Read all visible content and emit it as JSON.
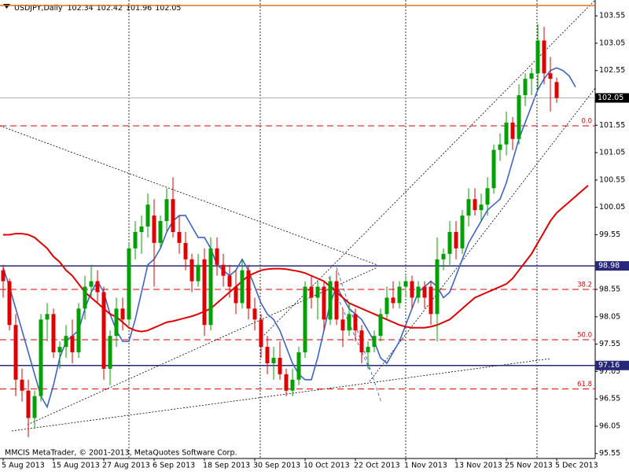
{
  "chart_data": {
    "type": "candlestick",
    "title": "USDJPY,Daily",
    "footer": "MMCIS MetaTrader, © 2001-2013, MetaQuotes Software Corp.",
    "categories": [
      "5 Aug 2013",
      null,
      null,
      null,
      null,
      null,
      null,
      null,
      "15 Aug 2013",
      null,
      null,
      null,
      null,
      null,
      null,
      null,
      "27 Aug 2013",
      null,
      null,
      null,
      null,
      null,
      null,
      null,
      "6 Sep 2013",
      null,
      null,
      null,
      null,
      null,
      null,
      null,
      "18 Sep 2013",
      null,
      null,
      null,
      null,
      null,
      null,
      null,
      "30 Sep 2013",
      null,
      null,
      null,
      null,
      null,
      null,
      null,
      "10 Oct 2013",
      null,
      null,
      null,
      null,
      null,
      null,
      null,
      "22 Oct 2013",
      null,
      null,
      null,
      null,
      null,
      null,
      null,
      "1 Nov 2013",
      null,
      null,
      null,
      null,
      null,
      null,
      null,
      "13 Nov 2013",
      null,
      null,
      null,
      null,
      null,
      null,
      null,
      "25 Nov 2013",
      null,
      null,
      null,
      null,
      null,
      null,
      null,
      "5 Dec 2013",
      null,
      null,
      null,
      null,
      null
    ],
    "open": [
      98.9,
      98.7,
      97.9,
      96.9,
      96.7,
      96.2,
      96.6,
      98.0,
      98.1,
      97.4,
      97.5,
      97.7,
      97.4,
      98.2,
      98.6,
      98.7,
      98.5,
      97.1,
      97.7,
      98.2,
      98.0,
      99.3,
      99.6,
      99.7,
      99.9,
      99.4,
      99.8,
      100.2,
      99.6,
      99.4,
      99.1,
      98.7,
      99.1,
      97.9,
      99.3,
      99.0,
      98.8,
      98.6,
      98.3,
      98.9,
      98.2,
      98.0,
      97.5,
      97.2,
      97.3,
      97.0,
      96.7,
      96.9,
      97.4,
      98.6,
      98.4,
      98.6,
      98.0,
      98.7,
      98.0,
      97.8,
      98.1,
      97.8,
      97.4,
      97.5,
      97.7,
      98.1,
      98.4,
      98.3,
      98.6,
      98.7,
      98.4,
      98.6,
      98.6,
      98.1,
      99.1,
      99.2,
      99.6,
      99.3,
      99.9,
      100.2,
      100.0,
      100.1,
      100.4,
      101.1,
      101.2,
      101.6,
      101.3,
      102.1,
      102.4,
      102.5,
      103.1,
      102.5,
      102.34,
      null,
      null,
      null,
      null,
      null
    ],
    "high": [
      99.0,
      98.75,
      98.1,
      97.1,
      96.9,
      96.7,
      98.1,
      98.3,
      98.2,
      97.6,
      97.9,
      98.0,
      98.3,
      98.8,
      99.0,
      98.9,
      98.6,
      97.8,
      98.4,
      98.4,
      99.4,
      99.8,
      99.9,
      100.3,
      100.2,
      99.9,
      100.4,
      100.6,
      99.9,
      99.6,
      99.2,
      99.2,
      99.3,
      99.5,
      99.5,
      99.2,
      99.0,
      98.9,
      99.1,
      99.0,
      98.4,
      98.1,
      97.7,
      97.5,
      97.6,
      97.1,
      97.1,
      97.5,
      98.7,
      98.8,
      98.7,
      98.7,
      98.8,
      98.9,
      98.2,
      98.3,
      98.2,
      97.9,
      97.6,
      97.8,
      98.2,
      98.6,
      98.7,
      98.7,
      98.8,
      98.8,
      98.7,
      98.7,
      98.7,
      99.5,
      99.3,
      99.8,
      99.8,
      100.0,
      100.4,
      100.4,
      100.3,
      100.6,
      101.2,
      101.4,
      101.8,
      101.7,
      102.3,
      102.5,
      102.6,
      103.4,
      103.35,
      102.8,
      102.42,
      null,
      null,
      null,
      null,
      null
    ],
    "low": [
      98.4,
      97.8,
      96.6,
      96.5,
      95.85,
      96.0,
      96.5,
      97.6,
      97.3,
      97.1,
      97.3,
      97.2,
      97.3,
      98.0,
      98.4,
      98.3,
      96.9,
      96.8,
      97.5,
      97.8,
      97.9,
      99.1,
      99.2,
      99.5,
      98.6,
      99.3,
      99.6,
      99.5,
      99.2,
      98.9,
      98.5,
      98.6,
      97.7,
      97.8,
      98.8,
      98.6,
      98.4,
      98.1,
      98.2,
      98.0,
      97.8,
      97.3,
      97.0,
      96.9,
      96.9,
      96.6,
      96.6,
      96.8,
      97.3,
      98.2,
      98.0,
      97.8,
      97.9,
      97.9,
      97.5,
      97.7,
      97.6,
      97.2,
      97.1,
      97.4,
      97.6,
      98.0,
      98.2,
      98.2,
      98.4,
      98.2,
      98.3,
      98.2,
      97.9,
      97.6,
      98.9,
      99.0,
      99.1,
      99.2,
      99.7,
      99.9,
      99.8,
      99.9,
      100.3,
      100.9,
      101.0,
      101.1,
      101.2,
      101.9,
      102.1,
      102.2,
      102.3,
      101.8,
      101.96,
      null,
      null,
      null,
      null,
      null
    ],
    "close": [
      98.7,
      97.9,
      96.9,
      96.7,
      96.2,
      96.6,
      98.0,
      98.1,
      97.4,
      97.5,
      97.7,
      97.4,
      98.2,
      98.6,
      98.7,
      98.5,
      97.1,
      97.7,
      98.2,
      98.0,
      99.3,
      99.6,
      99.7,
      100.1,
      99.4,
      99.8,
      100.2,
      99.6,
      99.4,
      99.1,
      98.7,
      99.0,
      97.9,
      99.3,
      99.0,
      98.8,
      98.6,
      98.3,
      98.9,
      98.2,
      98.0,
      97.5,
      97.2,
      97.3,
      97.0,
      96.7,
      96.9,
      97.4,
      98.6,
      98.4,
      98.6,
      98.0,
      98.7,
      98.0,
      97.8,
      98.1,
      97.8,
      97.4,
      97.5,
      97.7,
      98.1,
      98.4,
      98.3,
      98.6,
      98.7,
      98.4,
      98.6,
      98.4,
      98.1,
      99.1,
      99.2,
      99.6,
      99.3,
      99.9,
      100.2,
      100.0,
      100.1,
      100.4,
      101.1,
      101.2,
      101.6,
      101.3,
      102.1,
      102.4,
      102.5,
      103.1,
      102.5,
      102.4,
      102.05,
      null,
      null,
      null,
      null,
      null
    ],
    "up_color": "#00a000",
    "down_color": "#e00000",
    "indicators": [
      {
        "color": "#3c64c8",
        "values": [
          98.95,
          98.6,
          98.2,
          97.8,
          97.4,
          97.0,
          96.6,
          96.4,
          96.8,
          97.3,
          97.6,
          97.7,
          97.8,
          98.2,
          98.5,
          98.7,
          98.5,
          98.1,
          97.8,
          97.6,
          97.6,
          98.0,
          98.5,
          99.0,
          99.1,
          99.3,
          99.6,
          99.8,
          99.9,
          99.9,
          99.7,
          99.5,
          99.5,
          99.3,
          99.0,
          98.9,
          98.8,
          98.9,
          99.1,
          98.9,
          98.6,
          98.3,
          98.1,
          98.0,
          97.8,
          97.5,
          97.2,
          97.0,
          96.9,
          96.9,
          97.3,
          97.8,
          98.3,
          98.6,
          98.4,
          98.2,
          98.1,
          98.0,
          97.8,
          97.6,
          97.3,
          97.2,
          97.4,
          97.6,
          97.9,
          98.2,
          98.5,
          98.6,
          98.7,
          98.6,
          98.4,
          98.5,
          98.8,
          99.1,
          99.4,
          99.6,
          99.8,
          100.0,
          100.1,
          100.2,
          100.5,
          100.9,
          101.3,
          101.6,
          101.9,
          102.2,
          102.4,
          102.55,
          102.6,
          102.55,
          102.45,
          102.25,
          null,
          null
        ]
      },
      {
        "color": "#e00000",
        "values": [
          99.55,
          99.55,
          99.57,
          99.57,
          99.55,
          99.5,
          99.4,
          99.3,
          99.15,
          99.05,
          98.9,
          98.8,
          98.65,
          98.5,
          98.4,
          98.3,
          98.2,
          98.1,
          98.05,
          97.95,
          97.85,
          97.8,
          97.78,
          97.8,
          97.85,
          97.9,
          97.95,
          97.97,
          98.0,
          98.03,
          98.06,
          98.1,
          98.15,
          98.2,
          98.3,
          98.4,
          98.5,
          98.6,
          98.7,
          98.8,
          98.85,
          98.9,
          98.92,
          98.93,
          98.93,
          98.92,
          98.9,
          98.88,
          98.85,
          98.8,
          98.75,
          98.7,
          98.6,
          98.5,
          98.4,
          98.3,
          98.25,
          98.2,
          98.15,
          98.1,
          98.05,
          98.0,
          97.95,
          97.9,
          97.87,
          97.85,
          97.85,
          97.85,
          97.87,
          97.9,
          97.95,
          98.0,
          98.1,
          98.2,
          98.3,
          98.4,
          98.45,
          98.5,
          98.55,
          98.6,
          98.65,
          98.75,
          98.9,
          99.05,
          99.2,
          99.4,
          99.6,
          99.8,
          99.95,
          100.05,
          100.15,
          100.25,
          100.35,
          100.45
        ]
      }
    ],
    "fib_levels": [
      {
        "value": 103.74,
        "color": "#e07020",
        "style": "solid"
      },
      {
        "value": 101.54,
        "label": "0.0",
        "color": "#e00000",
        "style": "dashed"
      },
      {
        "value": 98.55,
        "label": "38.2",
        "color": "#e00000",
        "style": "dashed"
      },
      {
        "value": 97.63,
        "label": "50.0",
        "color": "#e00000",
        "style": "dashed"
      },
      {
        "value": 96.73,
        "label": "61.8",
        "color": "#e00000",
        "style": "dashed"
      }
    ],
    "price_lines": [
      {
        "value": 98.98,
        "color": "#28287a"
      },
      {
        "value": 97.16,
        "color": "#28287a"
      }
    ],
    "ylim": [
      95.46,
      103.84
    ],
    "yticks": [
      103.55,
      103.05,
      102.55,
      101.55,
      101.05,
      100.55,
      100.05,
      99.55,
      98.55,
      98.05,
      97.55,
      97.05,
      96.55,
      96.05,
      95.55
    ]
  }
}
